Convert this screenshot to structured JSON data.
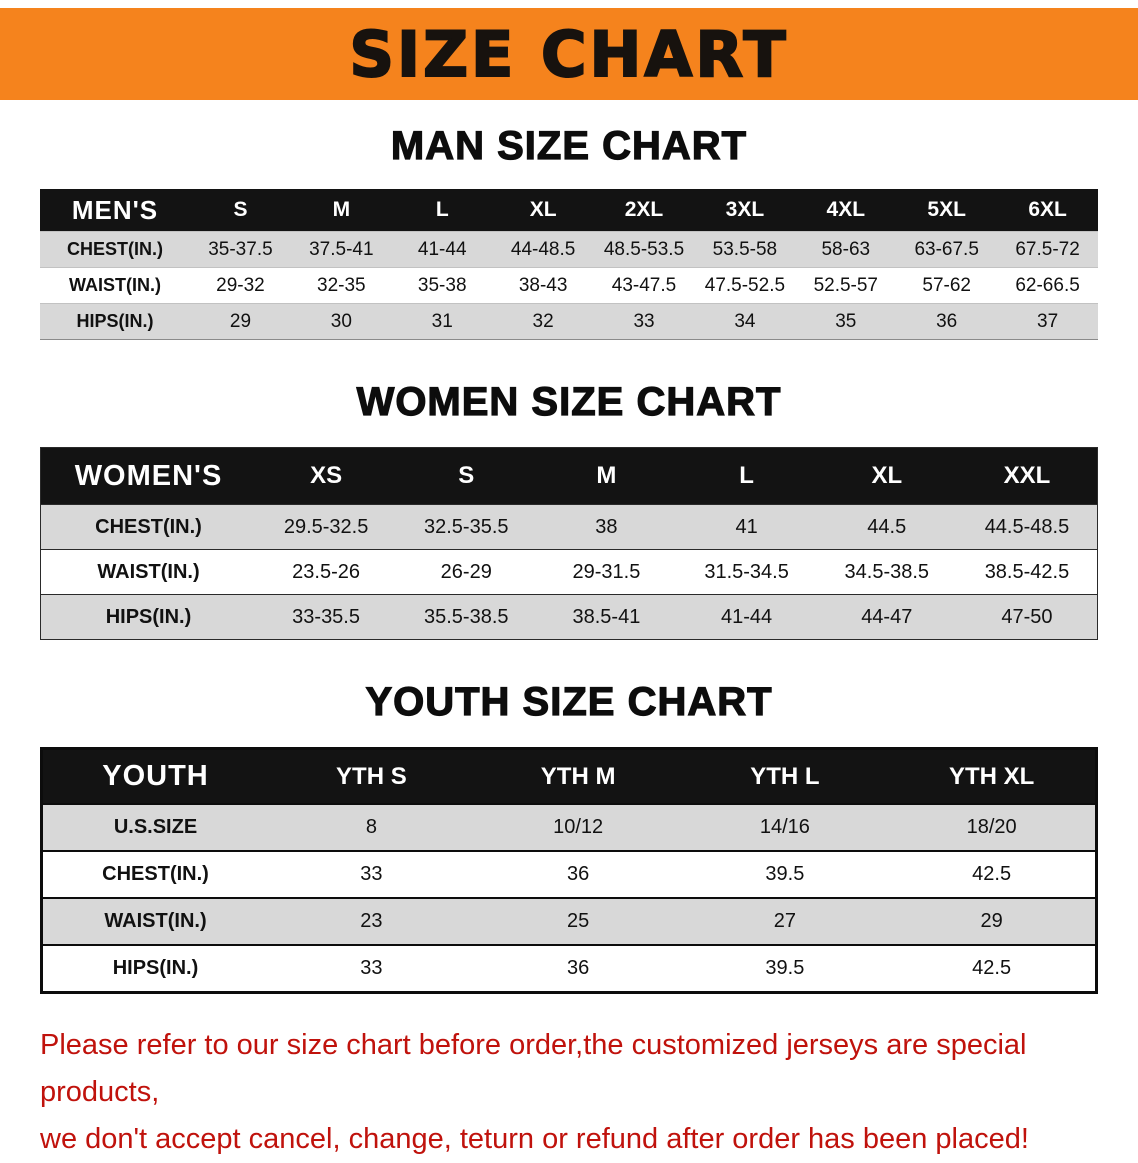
{
  "banner": {
    "title": "SIZE CHART",
    "bg_color": "#f5831d"
  },
  "sections": [
    {
      "id": "men",
      "heading": "MAN SIZE CHART",
      "table": {
        "label": "MEN'S",
        "columns": [
          "S",
          "M",
          "L",
          "XL",
          "2XL",
          "3XL",
          "4XL",
          "5XL",
          "6XL"
        ],
        "rows": [
          {
            "label": "CHEST(IN.)",
            "values": [
              "35-37.5",
              "37.5-41",
              "41-44",
              "44-48.5",
              "48.5-53.5",
              "53.5-58",
              "58-63",
              "63-67.5",
              "67.5-72"
            ]
          },
          {
            "label": "WAIST(IN.)",
            "values": [
              "29-32",
              "32-35",
              "35-38",
              "38-43",
              "43-47.5",
              "47.5-52.5",
              "52.5-57",
              "57-62",
              "62-66.5"
            ]
          },
          {
            "label": "HIPS(IN.)",
            "values": [
              "29",
              "30",
              "31",
              "32",
              "33",
              "34",
              "35",
              "36",
              "37"
            ]
          }
        ]
      }
    },
    {
      "id": "women",
      "heading": "WOMEN SIZE CHART",
      "table": {
        "label": "WOMEN'S",
        "columns": [
          "XS",
          "S",
          "M",
          "L",
          "XL",
          "XXL"
        ],
        "rows": [
          {
            "label": "CHEST(IN.)",
            "values": [
              "29.5-32.5",
              "32.5-35.5",
              "38",
              "41",
              "44.5",
              "44.5-48.5"
            ]
          },
          {
            "label": "WAIST(IN.)",
            "values": [
              "23.5-26",
              "26-29",
              "29-31.5",
              "31.5-34.5",
              "34.5-38.5",
              "38.5-42.5"
            ]
          },
          {
            "label": "HIPS(IN.)",
            "values": [
              "33-35.5",
              "35.5-38.5",
              "38.5-41",
              "41-44",
              "44-47",
              "47-50"
            ]
          }
        ]
      }
    },
    {
      "id": "youth",
      "heading": "YOUTH SIZE CHART",
      "table": {
        "label": "YOUTH",
        "columns": [
          "YTH S",
          "YTH M",
          "YTH L",
          "YTH XL"
        ],
        "rows": [
          {
            "label": "U.S.SIZE",
            "values": [
              "8",
              "10/12",
              "14/16",
              "18/20"
            ]
          },
          {
            "label": "CHEST(IN.)",
            "values": [
              "33",
              "36",
              "39.5",
              "42.5"
            ]
          },
          {
            "label": "WAIST(IN.)",
            "values": [
              "23",
              "25",
              "27",
              "29"
            ]
          },
          {
            "label": "HIPS(IN.)",
            "values": [
              "33",
              "36",
              "39.5",
              "42.5"
            ]
          }
        ]
      }
    }
  ],
  "disclaimer": {
    "color": "#c0120c",
    "lines": [
      "Please refer to our size chart before order,the customized jerseys are special products,",
      "we don't accept cancel, change, teturn or refund after order has been placed!"
    ]
  },
  "colors": {
    "table_header_bg": "#131313",
    "row_alt_bg": "#d8d8d8"
  }
}
